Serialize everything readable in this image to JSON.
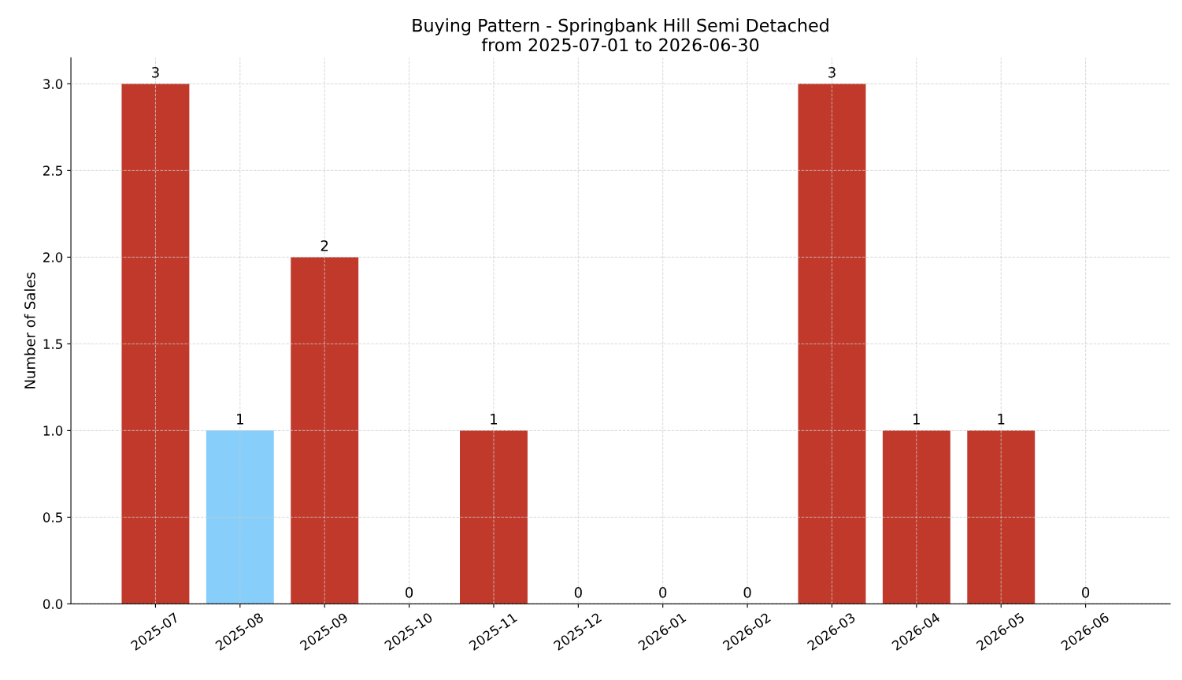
{
  "chart_data": {
    "type": "bar",
    "title": "Buying Pattern - Springbank Hill Semi Detached\nfrom 2025-07-01 to 2026-06-30",
    "ylabel": "Number of Sales",
    "categories": [
      "2025-07",
      "2025-08",
      "2025-09",
      "2025-10",
      "2025-11",
      "2025-12",
      "2026-01",
      "2026-02",
      "2026-03",
      "2026-04",
      "2026-05",
      "2026-06"
    ],
    "values": [
      3,
      1,
      2,
      0,
      1,
      0,
      0,
      0,
      3,
      1,
      1,
      0
    ],
    "colors": [
      "#c0392b",
      "#87cefa",
      "#c0392b",
      "#c0392b",
      "#c0392b",
      "#c0392b",
      "#c0392b",
      "#c0392b",
      "#c0392b",
      "#c0392b",
      "#c0392b",
      "#c0392b"
    ],
    "ylim": [
      0,
      3.15
    ],
    "yticks": [
      {
        "value": 0,
        "label": "0.0"
      },
      {
        "value": 0.5,
        "label": "0.5"
      },
      {
        "value": 1,
        "label": "1.0"
      },
      {
        "value": 1.5,
        "label": "1.5"
      },
      {
        "value": 2,
        "label": "2.0"
      },
      {
        "value": 2.5,
        "label": "2.5"
      },
      {
        "value": 3,
        "label": "3.0"
      }
    ],
    "grid": true,
    "data_labels": true
  }
}
